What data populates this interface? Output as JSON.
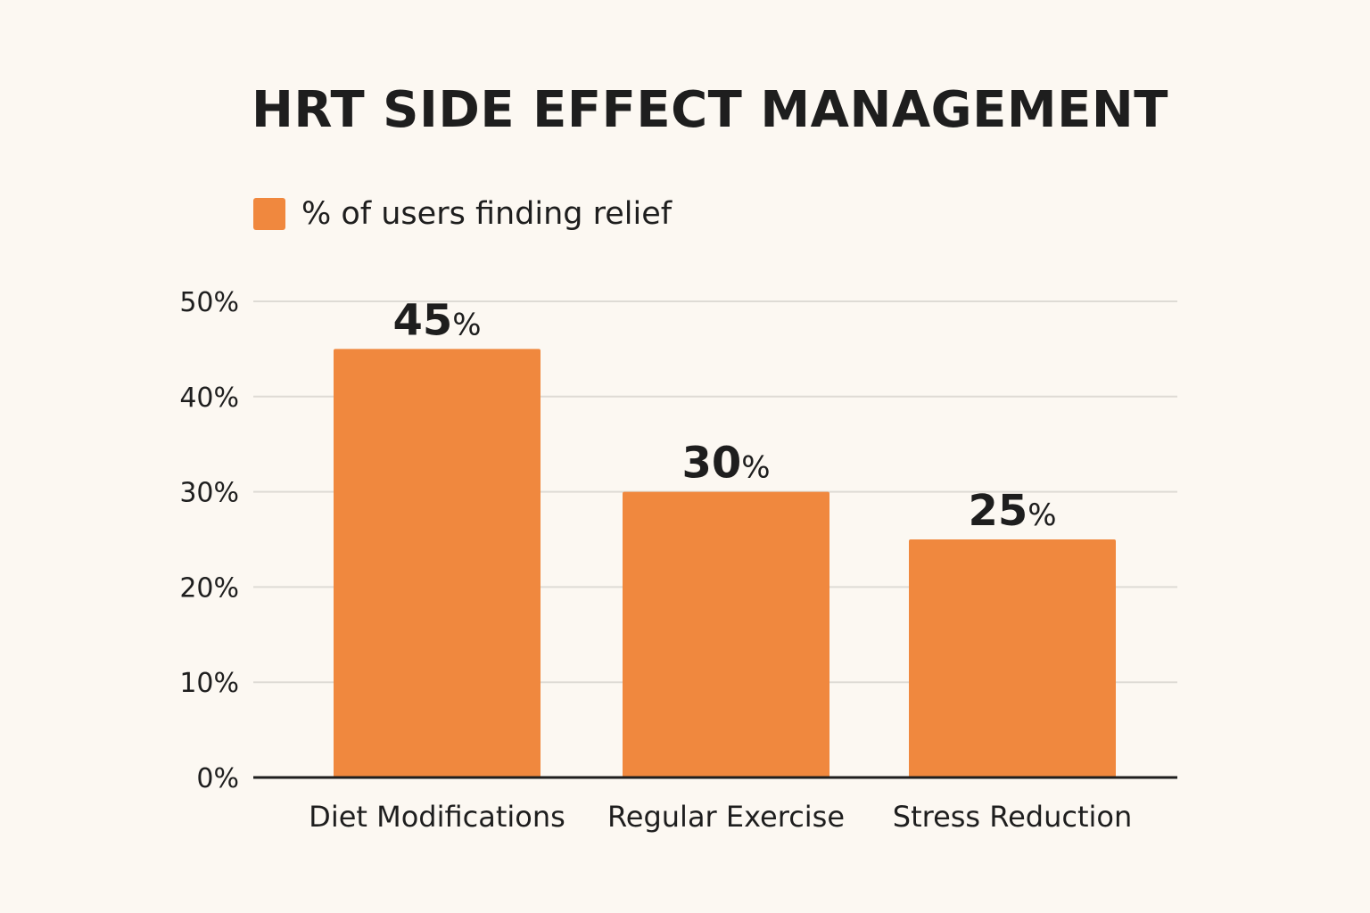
{
  "chart_data": {
    "type": "bar",
    "title": "HRT SIDE EFFECT MANAGEMENT",
    "categories": [
      "Diet Modifications",
      "Regular Exercise",
      "Stress Reduction"
    ],
    "series": [
      {
        "name": "% of users finding relief",
        "values": [
          45,
          30,
          25
        ],
        "color": "#f0883e"
      }
    ],
    "data_labels": [
      {
        "number": "45",
        "unit": "%"
      },
      {
        "number": "30",
        "unit": "%"
      },
      {
        "number": "25",
        "unit": "%"
      }
    ],
    "yticks": [
      "0%",
      "10%",
      "20%",
      "30%",
      "40%",
      "50%"
    ],
    "ylim": [
      0,
      50
    ],
    "xlabel": "",
    "ylabel": "",
    "grid": true,
    "legend": "top-left",
    "gridline_color": "#dedbd5",
    "axis_color": "#1e1e1e",
    "background": "#fcf8f2"
  }
}
